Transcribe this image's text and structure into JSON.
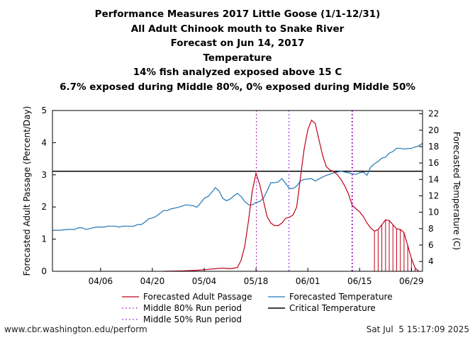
{
  "titles": [
    "Performance Measures 2017 Little Goose (1/1-12/31)",
    "All Adult Chinook mouth to Snake River",
    "Forecast on Jun 14, 2017",
    "Temperature",
    "14% fish analyzed exposed above 15 C",
    "6.7% exposed during Middle 80%, 0% exposed during Middle 50%"
  ],
  "footer": {
    "left": "www.cbr.washington.edu/perform",
    "right": "Sat Jul  5 15:17:09 2025"
  },
  "colors": {
    "passage": "#c0001a",
    "temperature": "#1f77b4",
    "middle80": "#a000a0",
    "middle50": "#8000ff",
    "critical": "#000000"
  },
  "chart_data": {
    "type": "line",
    "x_range": [
      "2017-03-24",
      "2017-07-02"
    ],
    "xticks": [
      "04/06",
      "04/20",
      "05/04",
      "05/18",
      "06/01",
      "06/15",
      "06/29"
    ],
    "ylabel_left": "Forecasted Adult Passage (Percent/Day)",
    "ylabel_right": "Forecasted Temperature (C)",
    "ylim_left": [
      0,
      5
    ],
    "yticks_left": [
      "0",
      "1",
      "2",
      "3",
      "4",
      "5"
    ],
    "ylim_right": [
      2.8,
      22.4
    ],
    "yticks_right": [
      "4",
      "6",
      "8",
      "10",
      "12",
      "14",
      "16",
      "18",
      "20",
      "22"
    ],
    "critical_temperature": 15,
    "middle80_lines": [
      "2017-05-18",
      "2017-06-13"
    ],
    "middle50_lines": [
      "2017-05-27",
      "2017-06-13"
    ],
    "hatch_range": [
      "2017-06-19",
      "2017-06-30"
    ],
    "series": [
      {
        "name": "Forecasted Adult Passage",
        "axis": "left",
        "points": [
          [
            "2017-04-23",
            0.0
          ],
          [
            "2017-04-28",
            0.01
          ],
          [
            "2017-05-02",
            0.03
          ],
          [
            "2017-05-05",
            0.06
          ],
          [
            "2017-05-07",
            0.08
          ],
          [
            "2017-05-09",
            0.1
          ],
          [
            "2017-05-11",
            0.08
          ],
          [
            "2017-05-13",
            0.12
          ],
          [
            "2017-05-14",
            0.35
          ],
          [
            "2017-05-15",
            0.8
          ],
          [
            "2017-05-16",
            1.6
          ],
          [
            "2017-05-17",
            2.5
          ],
          [
            "2017-05-18",
            3.05
          ],
          [
            "2017-05-19",
            2.7
          ],
          [
            "2017-05-20",
            2.2
          ],
          [
            "2017-05-21",
            1.7
          ],
          [
            "2017-05-22",
            1.5
          ],
          [
            "2017-05-23",
            1.42
          ],
          [
            "2017-05-24",
            1.42
          ],
          [
            "2017-05-25",
            1.5
          ],
          [
            "2017-05-26",
            1.65
          ],
          [
            "2017-05-27",
            1.68
          ],
          [
            "2017-05-28",
            1.75
          ],
          [
            "2017-05-29",
            2.0
          ],
          [
            "2017-05-30",
            2.9
          ],
          [
            "2017-05-31",
            3.8
          ],
          [
            "2017-06-01",
            4.4
          ],
          [
            "2017-06-02",
            4.7
          ],
          [
            "2017-06-03",
            4.6
          ],
          [
            "2017-06-04",
            4.1
          ],
          [
            "2017-06-05",
            3.6
          ],
          [
            "2017-06-06",
            3.25
          ],
          [
            "2017-06-07",
            3.15
          ],
          [
            "2017-06-08",
            3.1
          ],
          [
            "2017-06-09",
            3.0
          ],
          [
            "2017-06-10",
            2.85
          ],
          [
            "2017-06-11",
            2.65
          ],
          [
            "2017-06-12",
            2.4
          ],
          [
            "2017-06-13",
            2.05
          ],
          [
            "2017-06-14",
            1.95
          ],
          [
            "2017-06-15",
            1.85
          ],
          [
            "2017-06-16",
            1.7
          ],
          [
            "2017-06-17",
            1.5
          ],
          [
            "2017-06-18",
            1.35
          ],
          [
            "2017-06-19",
            1.25
          ],
          [
            "2017-06-20",
            1.3
          ],
          [
            "2017-06-21",
            1.45
          ],
          [
            "2017-06-22",
            1.6
          ],
          [
            "2017-06-23",
            1.58
          ],
          [
            "2017-06-24",
            1.45
          ],
          [
            "2017-06-25",
            1.32
          ],
          [
            "2017-06-26",
            1.3
          ],
          [
            "2017-06-27",
            1.2
          ],
          [
            "2017-06-28",
            0.8
          ],
          [
            "2017-06-29",
            0.4
          ],
          [
            "2017-06-30",
            0.1
          ],
          [
            "2017-07-01",
            0.0
          ]
        ]
      },
      {
        "name": "Forecasted Temperature",
        "axis": "right",
        "points": [
          [
            "2017-03-24",
            7.8
          ],
          [
            "2017-03-26",
            7.8
          ],
          [
            "2017-03-28",
            7.9
          ],
          [
            "2017-03-30",
            7.9
          ],
          [
            "2017-03-31",
            8.1
          ],
          [
            "2017-04-01",
            8.1
          ],
          [
            "2017-04-02",
            7.9
          ],
          [
            "2017-04-03",
            8.0
          ],
          [
            "2017-04-04",
            8.1
          ],
          [
            "2017-04-05",
            8.2
          ],
          [
            "2017-04-07",
            8.2
          ],
          [
            "2017-04-08",
            8.3
          ],
          [
            "2017-04-10",
            8.3
          ],
          [
            "2017-04-11",
            8.2
          ],
          [
            "2017-04-12",
            8.3
          ],
          [
            "2017-04-15",
            8.3
          ],
          [
            "2017-04-16",
            8.5
          ],
          [
            "2017-04-17",
            8.5
          ],
          [
            "2017-04-18",
            8.8
          ],
          [
            "2017-04-19",
            9.2
          ],
          [
            "2017-04-20",
            9.3
          ],
          [
            "2017-04-21",
            9.5
          ],
          [
            "2017-04-23",
            10.2
          ],
          [
            "2017-04-24",
            10.2
          ],
          [
            "2017-04-25",
            10.4
          ],
          [
            "2017-04-26",
            10.5
          ],
          [
            "2017-04-27",
            10.6
          ],
          [
            "2017-04-29",
            10.9
          ],
          [
            "2017-05-01",
            10.8
          ],
          [
            "2017-05-02",
            10.6
          ],
          [
            "2017-05-03",
            11.1
          ],
          [
            "2017-05-04",
            11.7
          ],
          [
            "2017-05-05",
            11.9
          ],
          [
            "2017-05-06",
            12.4
          ],
          [
            "2017-05-07",
            13.0
          ],
          [
            "2017-05-08",
            12.6
          ],
          [
            "2017-05-09",
            11.7
          ],
          [
            "2017-05-10",
            11.4
          ],
          [
            "2017-05-11",
            11.6
          ],
          [
            "2017-05-12",
            12.0
          ],
          [
            "2017-05-13",
            12.3
          ],
          [
            "2017-05-14",
            11.9
          ],
          [
            "2017-05-15",
            11.3
          ],
          [
            "2017-05-16",
            10.9
          ],
          [
            "2017-05-17",
            10.9
          ],
          [
            "2017-05-18",
            11.2
          ],
          [
            "2017-05-19",
            11.3
          ],
          [
            "2017-05-20",
            11.7
          ],
          [
            "2017-05-21",
            12.6
          ],
          [
            "2017-05-22",
            13.6
          ],
          [
            "2017-05-23",
            13.6
          ],
          [
            "2017-05-24",
            13.7
          ],
          [
            "2017-05-25",
            14.1
          ],
          [
            "2017-05-26",
            13.5
          ],
          [
            "2017-05-27",
            12.9
          ],
          [
            "2017-05-28",
            12.9
          ],
          [
            "2017-05-29",
            13.2
          ],
          [
            "2017-05-30",
            13.8
          ],
          [
            "2017-05-31",
            14.0
          ],
          [
            "2017-06-02",
            14.1
          ],
          [
            "2017-06-03",
            13.8
          ],
          [
            "2017-06-05",
            14.3
          ],
          [
            "2017-06-06",
            14.5
          ],
          [
            "2017-06-08",
            14.8
          ],
          [
            "2017-06-10",
            15.0
          ],
          [
            "2017-06-12",
            14.8
          ],
          [
            "2017-06-14",
            14.6
          ],
          [
            "2017-06-15",
            14.8
          ],
          [
            "2017-06-16",
            14.9
          ],
          [
            "2017-06-17",
            14.5
          ],
          [
            "2017-06-18",
            15.5
          ],
          [
            "2017-06-19",
            15.9
          ],
          [
            "2017-06-20",
            16.2
          ],
          [
            "2017-06-21",
            16.6
          ],
          [
            "2017-06-22",
            16.7
          ],
          [
            "2017-06-23",
            17.2
          ],
          [
            "2017-06-24",
            17.4
          ],
          [
            "2017-06-25",
            17.8
          ],
          [
            "2017-06-26",
            17.8
          ],
          [
            "2017-06-27",
            17.7
          ],
          [
            "2017-06-29",
            17.8
          ],
          [
            "2017-07-01",
            18.1
          ],
          [
            "2017-07-02",
            18.4
          ]
        ]
      }
    ],
    "legend": [
      {
        "label": "Forecasted Adult Passage",
        "style": "passage"
      },
      {
        "label": "Forecasted Temperature",
        "style": "temperature"
      },
      {
        "label": "Middle 80% Run period",
        "style": "middle80"
      },
      {
        "label": "Critical Temperature",
        "style": "critical"
      },
      {
        "label": "Middle 50% Run period",
        "style": "middle50"
      }
    ]
  }
}
